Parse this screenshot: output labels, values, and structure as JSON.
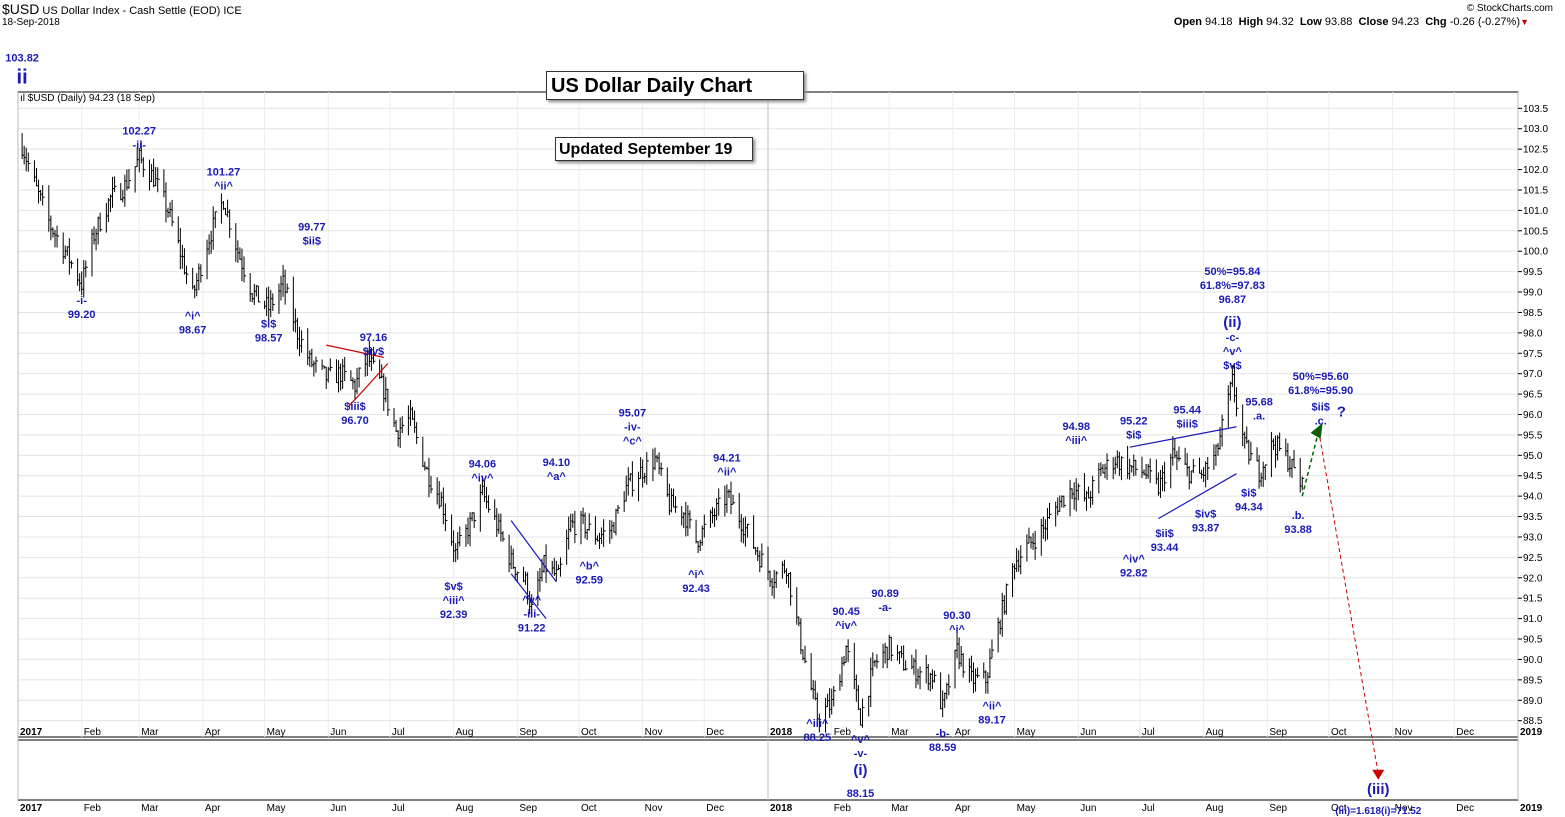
{
  "header": {
    "symbol": "$USD",
    "name": "US Dollar Index - Cash Settle (EOD)",
    "exchange": "ICE",
    "date": "18-Sep-2018",
    "brand": "© StockCharts.com",
    "open_label": "Open",
    "open": "94.18",
    "high_label": "High",
    "high": "94.32",
    "low_label": "Low",
    "low": "93.88",
    "close_label": "Close",
    "close": "94.23",
    "chg_label": "Chg",
    "chg": "-0.26 (-0.27%)",
    "legend": "$USD (Daily) 94.23 (18 Sep)"
  },
  "title_box": "US Dollar Daily Chart",
  "update_box": "Updated September 19",
  "colors": {
    "wave": "#1a1ab8",
    "price": "#000000",
    "triangle": "#cc0000",
    "target": "#cc0000",
    "projection": "#006400"
  },
  "chart_data": {
    "type": "bar",
    "y_ticks": [
      88.5,
      89.0,
      89.5,
      90.0,
      90.5,
      91.0,
      91.5,
      92.0,
      92.5,
      93.0,
      93.5,
      94.0,
      94.5,
      95.0,
      95.5,
      96.0,
      96.5,
      97.0,
      97.5,
      98.0,
      98.5,
      99.0,
      99.5,
      100.0,
      100.5,
      101.0,
      101.5,
      102.0,
      102.5,
      103.0,
      103.5
    ],
    "y_tick_labels": [
      "88.5",
      "89.0",
      "89.5",
      "90.0",
      "90.5",
      "91.0",
      "91.5",
      "92.0",
      "92.5",
      "93.0",
      "93.5",
      "94.0",
      "94.5",
      "95.0",
      "95.5",
      "96.0",
      "96.5",
      "97.0",
      "97.5",
      "98.0",
      "98.5",
      "99.0",
      "99.5",
      "100.0",
      "100.5",
      "101.0",
      "101.5",
      "102.0",
      "102.5",
      "103.0",
      "103.5"
    ],
    "ylim": [
      88.1,
      103.9
    ],
    "xlim": [
      "2017-01-01",
      "2019-01-01"
    ],
    "x_months": [
      {
        "date": "2017-01-01",
        "label": "2017",
        "year": true
      },
      {
        "date": "2017-02-01",
        "label": "Feb"
      },
      {
        "date": "2017-03-01",
        "label": "Mar"
      },
      {
        "date": "2017-04-01",
        "label": "Apr"
      },
      {
        "date": "2017-05-01",
        "label": "May"
      },
      {
        "date": "2017-06-01",
        "label": "Jun"
      },
      {
        "date": "2017-07-01",
        "label": "Jul"
      },
      {
        "date": "2017-08-01",
        "label": "Aug"
      },
      {
        "date": "2017-09-01",
        "label": "Sep"
      },
      {
        "date": "2017-10-01",
        "label": "Oct"
      },
      {
        "date": "2017-11-01",
        "label": "Nov"
      },
      {
        "date": "2017-12-01",
        "label": "Dec"
      },
      {
        "date": "2018-01-01",
        "label": "2018",
        "year": true
      },
      {
        "date": "2018-02-01",
        "label": "Feb"
      },
      {
        "date": "2018-03-01",
        "label": "Mar"
      },
      {
        "date": "2018-04-01",
        "label": "Apr"
      },
      {
        "date": "2018-05-01",
        "label": "May"
      },
      {
        "date": "2018-06-01",
        "label": "Jun"
      },
      {
        "date": "2018-07-01",
        "label": "Jul"
      },
      {
        "date": "2018-08-01",
        "label": "Aug"
      },
      {
        "date": "2018-09-01",
        "label": "Sep"
      },
      {
        "date": "2018-10-01",
        "label": "Oct"
      },
      {
        "date": "2018-11-01",
        "label": "Nov"
      },
      {
        "date": "2018-12-01",
        "label": "Dec"
      },
      {
        "date": "2019-01-01",
        "label": "2019",
        "year": true
      }
    ],
    "price_path": [
      [
        "2017-01-03",
        102.6
      ],
      [
        "2017-01-10",
        101.5
      ],
      [
        "2017-01-17",
        100.6
      ],
      [
        "2017-01-24",
        100.0
      ],
      [
        "2017-02-01",
        99.2
      ],
      [
        "2017-02-07",
        100.4
      ],
      [
        "2017-02-15",
        101.3
      ],
      [
        "2017-02-22",
        101.6
      ],
      [
        "2017-03-01",
        102.27
      ],
      [
        "2017-03-08",
        101.8
      ],
      [
        "2017-03-15",
        101.0
      ],
      [
        "2017-03-22",
        99.8
      ],
      [
        "2017-03-27",
        98.9
      ],
      [
        "2017-04-03",
        100.2
      ],
      [
        "2017-04-11",
        101.27
      ],
      [
        "2017-04-18",
        100.0
      ],
      [
        "2017-04-25",
        99.0
      ],
      [
        "2017-05-03",
        98.6
      ],
      [
        "2017-05-10",
        99.2
      ],
      [
        "2017-05-17",
        98.0
      ],
      [
        "2017-05-23",
        97.3
      ],
      [
        "2017-05-31",
        96.9
      ],
      [
        "2017-06-07",
        97.0
      ],
      [
        "2017-06-14",
        96.7
      ],
      [
        "2017-06-20",
        97.4
      ],
      [
        "2017-06-28",
        96.6
      ],
      [
        "2017-07-04",
        95.6
      ],
      [
        "2017-07-11",
        95.9
      ],
      [
        "2017-07-19",
        94.6
      ],
      [
        "2017-07-26",
        93.9
      ],
      [
        "2017-08-02",
        92.6
      ],
      [
        "2017-08-09",
        93.3
      ],
      [
        "2017-08-15",
        94.06
      ],
      [
        "2017-08-22",
        93.3
      ],
      [
        "2017-08-29",
        92.4
      ],
      [
        "2017-09-05",
        91.9
      ],
      [
        "2017-09-08",
        91.22
      ],
      [
        "2017-09-14",
        92.3
      ],
      [
        "2017-09-21",
        92.0
      ],
      [
        "2017-09-27",
        93.3
      ],
      [
        "2017-10-03",
        93.3
      ],
      [
        "2017-10-10",
        93.0
      ],
      [
        "2017-10-17",
        93.2
      ],
      [
        "2017-10-24",
        94.2
      ],
      [
        "2017-10-31",
        94.6
      ],
      [
        "2017-11-07",
        94.9
      ],
      [
        "2017-11-14",
        93.8
      ],
      [
        "2017-11-21",
        93.6
      ],
      [
        "2017-11-27",
        92.9
      ],
      [
        "2017-12-05",
        93.5
      ],
      [
        "2017-12-12",
        94.0
      ],
      [
        "2017-12-19",
        93.4
      ],
      [
        "2017-12-27",
        92.6
      ],
      [
        "2018-01-03",
        92.0
      ],
      [
        "2018-01-10",
        92.3
      ],
      [
        "2018-01-17",
        90.4
      ],
      [
        "2018-01-25",
        88.6
      ],
      [
        "2018-02-01",
        88.9
      ],
      [
        "2018-02-08",
        90.3
      ],
      [
        "2018-02-15",
        88.6
      ],
      [
        "2018-02-22",
        89.9
      ],
      [
        "2018-03-01",
        90.3
      ],
      [
        "2018-03-08",
        89.9
      ],
      [
        "2018-03-15",
        89.7
      ],
      [
        "2018-03-22",
        89.6
      ],
      [
        "2018-03-27",
        88.8
      ],
      [
        "2018-04-03",
        90.2
      ],
      [
        "2018-04-10",
        89.5
      ],
      [
        "2018-04-17",
        89.5
      ],
      [
        "2018-04-24",
        91.0
      ],
      [
        "2018-05-01",
        92.4
      ],
      [
        "2018-05-08",
        92.8
      ],
      [
        "2018-05-15",
        93.2
      ],
      [
        "2018-05-22",
        93.8
      ],
      [
        "2018-05-29",
        94.2
      ],
      [
        "2018-06-05",
        93.9
      ],
      [
        "2018-06-12",
        94.6
      ],
      [
        "2018-06-19",
        94.9
      ],
      [
        "2018-06-26",
        94.7
      ],
      [
        "2018-07-03",
        94.6
      ],
      [
        "2018-07-10",
        94.2
      ],
      [
        "2018-07-17",
        95.0
      ],
      [
        "2018-07-24",
        94.6
      ],
      [
        "2018-07-31",
        94.5
      ],
      [
        "2018-08-07",
        95.0
      ],
      [
        "2018-08-15",
        96.8
      ],
      [
        "2018-08-21",
        95.2
      ],
      [
        "2018-08-28",
        94.6
      ],
      [
        "2018-09-04",
        95.3
      ],
      [
        "2018-09-11",
        94.9
      ],
      [
        "2018-09-18",
        94.23
      ]
    ],
    "annotations": [
      {
        "date": "2017-01-03",
        "price": 103.82,
        "lines": [
          "103.82"
        ],
        "dy": -34
      },
      {
        "date": "2017-01-03",
        "price": 103.82,
        "lines": [
          "ii"
        ],
        "dy": -12,
        "size": 20
      },
      {
        "date": "2017-02-01",
        "price": 99.2,
        "lines": [
          "-i-",
          "99.20"
        ],
        "dy": 20
      },
      {
        "date": "2017-03-01",
        "price": 102.27,
        "lines": [
          "102.27",
          "-ii-"
        ],
        "dy": -24
      },
      {
        "date": "2017-03-27",
        "price": 98.67,
        "lines": [
          "^i^",
          "98.67"
        ],
        "dy": 14
      },
      {
        "date": "2017-04-11",
        "price": 101.27,
        "lines": [
          "101.27",
          "^ii^"
        ],
        "dy": -24
      },
      {
        "date": "2017-05-03",
        "price": 98.57,
        "lines": [
          "$i$",
          "98.57"
        ],
        "dy": 18
      },
      {
        "date": "2017-05-24",
        "price": 99.77,
        "lines": [
          "99.77",
          "$ii$"
        ],
        "dy": -30
      },
      {
        "date": "2017-06-14",
        "price": 96.7,
        "lines": [
          "$iii$",
          "96.70"
        ],
        "dy": 24
      },
      {
        "date": "2017-06-23",
        "price": 97.16,
        "lines": [
          "97.16",
          "$iv$"
        ],
        "dy": -26
      },
      {
        "date": "2017-08-01",
        "price": 92.39,
        "lines": [
          "$v$",
          "^iii^",
          "92.39"
        ],
        "dy": 28
      },
      {
        "date": "2017-08-15",
        "price": 94.06,
        "lines": [
          "94.06",
          "^iv^"
        ],
        "dy": -26
      },
      {
        "date": "2017-09-08",
        "price": 91.22,
        "lines": [
          "^v^",
          "-iii-",
          "91.22"
        ],
        "dy": -6
      },
      {
        "date": "2017-09-20",
        "price": 94.1,
        "lines": [
          "94.10",
          "^a^"
        ],
        "dy": -26
      },
      {
        "date": "2017-10-06",
        "price": 92.59,
        "lines": [
          "^b^",
          "92.59"
        ],
        "dy": 16
      },
      {
        "date": "2017-10-27",
        "price": 95.07,
        "lines": [
          "95.07",
          "-iv-",
          "^c^"
        ],
        "dy": -36
      },
      {
        "date": "2017-11-27",
        "price": 92.43,
        "lines": [
          "^i^",
          "92.43"
        ],
        "dy": 18
      },
      {
        "date": "2017-12-12",
        "price": 94.21,
        "lines": [
          "94.21",
          "^ii^"
        ],
        "dy": -26
      },
      {
        "date": "2018-01-25",
        "price": 88.25,
        "lines": [
          "^iii^",
          "88.25"
        ],
        "dy": -4
      },
      {
        "date": "2018-02-08",
        "price": 90.45,
        "lines": [
          "90.45",
          "^iv^"
        ],
        "dy": -26
      },
      {
        "date": "2018-02-15",
        "price": 88.15,
        "lines": [
          "^v^",
          "-v-"
        ],
        "dy": 8
      },
      {
        "date": "2018-02-15",
        "price": 88.15,
        "lines": [
          "(i)"
        ],
        "dy": 40,
        "size": 15
      },
      {
        "date": "2018-02-15",
        "price": 88.15,
        "lines": [
          "88.15"
        ],
        "dy": 62
      },
      {
        "date": "2018-02-27",
        "price": 90.89,
        "lines": [
          "90.89",
          "-a-"
        ],
        "dy": -26
      },
      {
        "date": "2018-03-27",
        "price": 88.59,
        "lines": [
          "-b-",
          "88.59"
        ],
        "dy": 20
      },
      {
        "date": "2018-04-03",
        "price": 90.3,
        "lines": [
          "90.30",
          "^i^"
        ],
        "dy": -28
      },
      {
        "date": "2018-04-20",
        "price": 89.17,
        "lines": [
          "^ii^",
          "89.17"
        ],
        "dy": 16
      },
      {
        "date": "2018-05-31",
        "price": 94.98,
        "lines": [
          "94.98",
          "^iii^"
        ],
        "dy": -26
      },
      {
        "date": "2018-06-28",
        "price": 92.82,
        "lines": [
          "^iv^",
          "92.82"
        ],
        "dy": 18
      },
      {
        "date": "2018-06-28",
        "price": 95.22,
        "lines": [
          "95.22",
          "$i$"
        ],
        "dy": -22
      },
      {
        "date": "2018-07-13",
        "price": 93.44,
        "lines": [
          "$ii$",
          "93.44"
        ],
        "dy": 18
      },
      {
        "date": "2018-07-24",
        "price": 95.44,
        "lines": [
          "95.44",
          "$iii$"
        ],
        "dy": -24
      },
      {
        "date": "2018-08-02",
        "price": 93.87,
        "lines": [
          "$iv$",
          "93.87"
        ],
        "dy": 16
      },
      {
        "date": "2018-08-15",
        "price": 96.87,
        "lines": [
          "50%=95.84",
          "61.8%=97.83",
          "96.87"
        ],
        "dy": -104
      },
      {
        "date": "2018-08-15",
        "price": 96.87,
        "lines": [
          "(ii)"
        ],
        "dy": -52,
        "size": 15
      },
      {
        "date": "2018-08-15",
        "price": 96.87,
        "lines": [
          "-c-",
          "^v^",
          "$v$"
        ],
        "dy": -38
      },
      {
        "date": "2018-08-28",
        "price": 95.68,
        "lines": [
          "95.68",
          ".a."
        ],
        "dy": -22
      },
      {
        "date": "2018-08-23",
        "price": 94.34,
        "lines": [
          "$i$",
          "94.34"
        ],
        "dy": 14
      },
      {
        "date": "2018-09-16",
        "price": 93.88,
        "lines": [
          ".b.",
          "93.88"
        ],
        "dy": 18
      },
      {
        "date": "2018-09-27",
        "price": 96.5,
        "lines": [
          "50%=95.60",
          "61.8%=95.90"
        ],
        "dy": -14
      },
      {
        "date": "2018-09-27",
        "price": 95.8,
        "lines": [
          "$ii$",
          ".c."
        ],
        "dy": -12
      },
      {
        "date": "2018-10-07",
        "price": 95.95,
        "lines": [
          "?"
        ],
        "dy": 0,
        "size": 15
      },
      {
        "date": "2018-10-25",
        "price": 86.7,
        "lines": [
          "(iii)"
        ],
        "dy": 0,
        "size": 15
      },
      {
        "date": "2018-10-25",
        "price": 86.7,
        "lines": [
          "(iii)=1.618(i)=71.52"
        ],
        "dy": 20,
        "size": 10
      }
    ],
    "triangles": [
      {
        "color": "#cc0000",
        "upper": [
          [
            "2017-05-31",
            97.7
          ],
          [
            "2017-06-28",
            97.4
          ]
        ],
        "lower": [
          [
            "2017-06-11",
            96.2
          ],
          [
            "2017-06-30",
            97.25
          ]
        ]
      },
      {
        "color": "#1a1ab8",
        "upper": [
          [
            "2017-08-29",
            93.4
          ],
          [
            "2017-09-20",
            91.9
          ]
        ],
        "lower": [
          [
            "2017-08-29",
            92.1
          ],
          [
            "2017-09-15",
            91.0
          ]
        ]
      },
      {
        "color": "#1a1ab8",
        "upper": [
          [
            "2018-06-26",
            95.2
          ],
          [
            "2018-08-17",
            95.7
          ]
        ],
        "lower": [
          [
            "2018-07-10",
            93.45
          ],
          [
            "2018-08-17",
            94.55
          ]
        ]
      }
    ],
    "projection": [
      [
        "2018-09-18",
        94.0
      ],
      [
        "2018-09-26",
        95.6
      ]
    ],
    "target_line": [
      [
        "2018-09-26",
        95.6
      ],
      [
        "2018-10-25",
        87.2
      ]
    ]
  }
}
